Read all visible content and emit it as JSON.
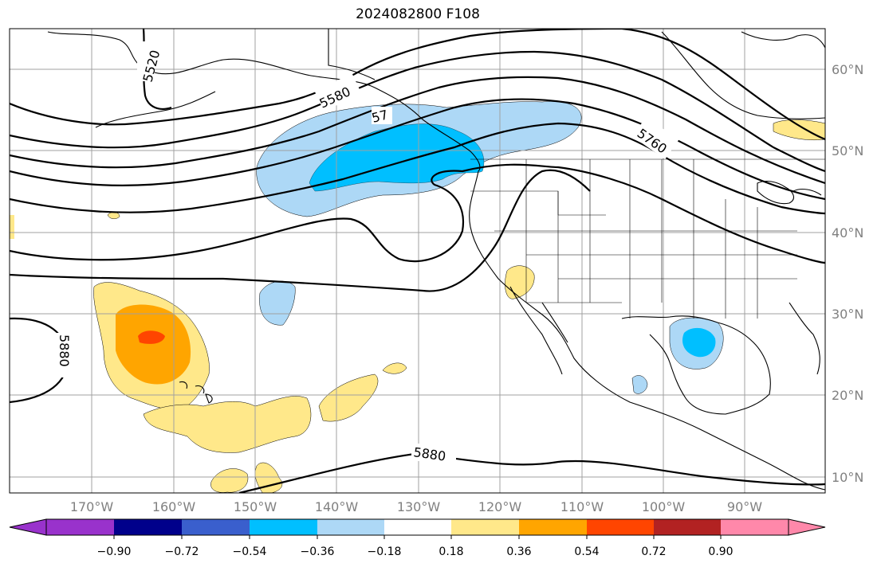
{
  "title": "2024082800 F108",
  "lat_labels": [
    "60°N",
    "50°N",
    "40°N",
    "30°N",
    "20°N",
    "10°N"
  ],
  "lon_labels": [
    "170°W",
    "160°W",
    "150°W",
    "140°W",
    "130°W",
    "120°W",
    "110°W",
    "100°W",
    "90°W"
  ],
  "contour_labels": [
    "5520",
    "5580",
    "57",
    "5760",
    "5880",
    "5880"
  ],
  "colorbar": {
    "ticks": [
      "−0.90",
      "−0.72",
      "−0.54",
      "−0.36",
      "−0.18",
      "0.18",
      "0.36",
      "0.54",
      "0.72",
      "0.90"
    ],
    "colors": [
      "#9932cc",
      "#00008b",
      "#3a5fcd",
      "#00bfff",
      "#add8f6",
      "#ffffff",
      "#ffe88a",
      "#ffa500",
      "#ff4500",
      "#b22222",
      "#ff88aa"
    ]
  },
  "colors": {
    "neg_light": "#add8f6",
    "neg_medium": "#00bfff",
    "pos_light": "#ffe88a",
    "pos_orange": "#ffa500",
    "pos_red": "#ff4500"
  }
}
